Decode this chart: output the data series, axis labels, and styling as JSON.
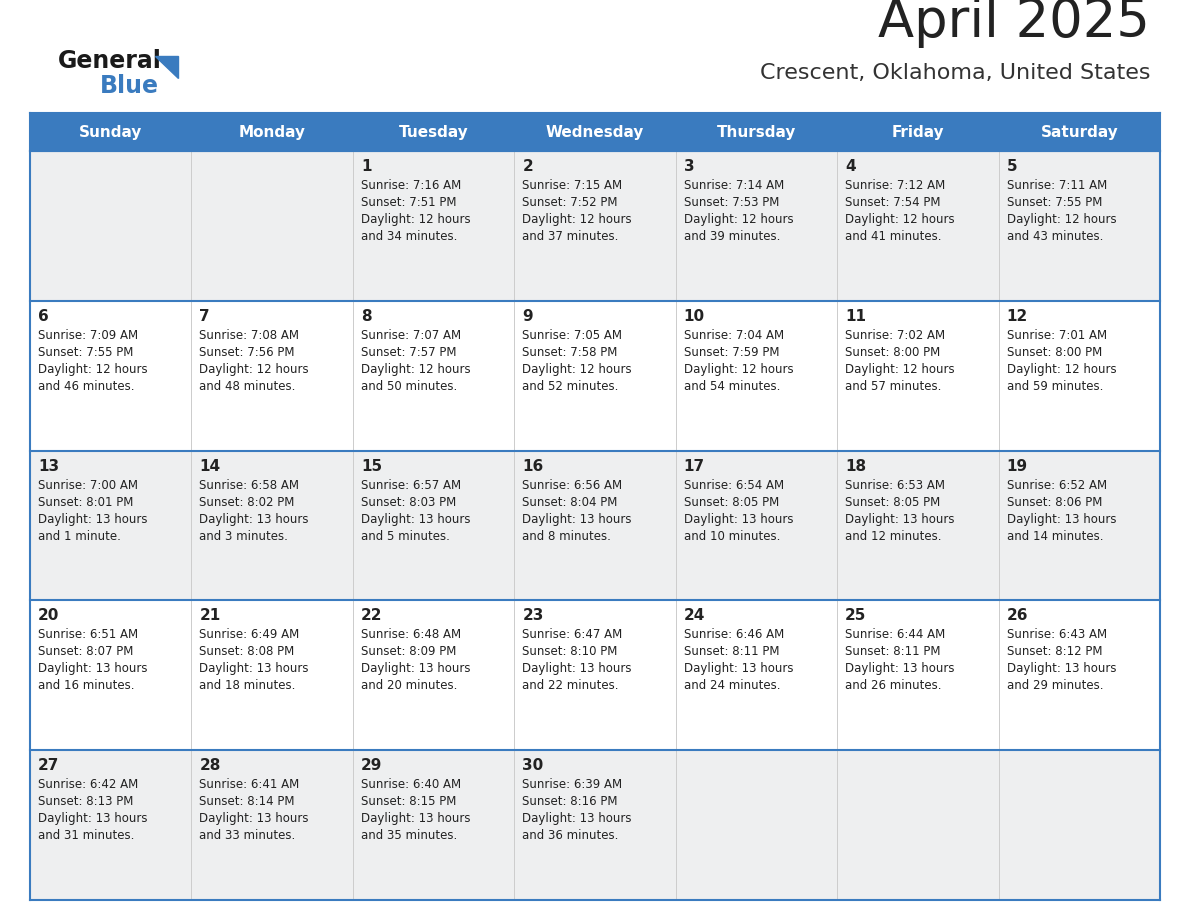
{
  "title": "April 2025",
  "subtitle": "Crescent, Oklahoma, United States",
  "days_of_week": [
    "Sunday",
    "Monday",
    "Tuesday",
    "Wednesday",
    "Thursday",
    "Friday",
    "Saturday"
  ],
  "header_bg": "#3a7bbf",
  "header_text": "#ffffff",
  "row_bg_odd": "#eeeff0",
  "row_bg_even": "#ffffff",
  "cell_text_color": "#222222",
  "grid_line_color": "#3a7bbf",
  "bg_color": "#ffffff",
  "title_color": "#222222",
  "subtitle_color": "#333333",
  "weeks": [
    [
      {
        "day": "",
        "info": ""
      },
      {
        "day": "",
        "info": ""
      },
      {
        "day": "1",
        "info": "Sunrise: 7:16 AM\nSunset: 7:51 PM\nDaylight: 12 hours\nand 34 minutes."
      },
      {
        "day": "2",
        "info": "Sunrise: 7:15 AM\nSunset: 7:52 PM\nDaylight: 12 hours\nand 37 minutes."
      },
      {
        "day": "3",
        "info": "Sunrise: 7:14 AM\nSunset: 7:53 PM\nDaylight: 12 hours\nand 39 minutes."
      },
      {
        "day": "4",
        "info": "Sunrise: 7:12 AM\nSunset: 7:54 PM\nDaylight: 12 hours\nand 41 minutes."
      },
      {
        "day": "5",
        "info": "Sunrise: 7:11 AM\nSunset: 7:55 PM\nDaylight: 12 hours\nand 43 minutes."
      }
    ],
    [
      {
        "day": "6",
        "info": "Sunrise: 7:09 AM\nSunset: 7:55 PM\nDaylight: 12 hours\nand 46 minutes."
      },
      {
        "day": "7",
        "info": "Sunrise: 7:08 AM\nSunset: 7:56 PM\nDaylight: 12 hours\nand 48 minutes."
      },
      {
        "day": "8",
        "info": "Sunrise: 7:07 AM\nSunset: 7:57 PM\nDaylight: 12 hours\nand 50 minutes."
      },
      {
        "day": "9",
        "info": "Sunrise: 7:05 AM\nSunset: 7:58 PM\nDaylight: 12 hours\nand 52 minutes."
      },
      {
        "day": "10",
        "info": "Sunrise: 7:04 AM\nSunset: 7:59 PM\nDaylight: 12 hours\nand 54 minutes."
      },
      {
        "day": "11",
        "info": "Sunrise: 7:02 AM\nSunset: 8:00 PM\nDaylight: 12 hours\nand 57 minutes."
      },
      {
        "day": "12",
        "info": "Sunrise: 7:01 AM\nSunset: 8:00 PM\nDaylight: 12 hours\nand 59 minutes."
      }
    ],
    [
      {
        "day": "13",
        "info": "Sunrise: 7:00 AM\nSunset: 8:01 PM\nDaylight: 13 hours\nand 1 minute."
      },
      {
        "day": "14",
        "info": "Sunrise: 6:58 AM\nSunset: 8:02 PM\nDaylight: 13 hours\nand 3 minutes."
      },
      {
        "day": "15",
        "info": "Sunrise: 6:57 AM\nSunset: 8:03 PM\nDaylight: 13 hours\nand 5 minutes."
      },
      {
        "day": "16",
        "info": "Sunrise: 6:56 AM\nSunset: 8:04 PM\nDaylight: 13 hours\nand 8 minutes."
      },
      {
        "day": "17",
        "info": "Sunrise: 6:54 AM\nSunset: 8:05 PM\nDaylight: 13 hours\nand 10 minutes."
      },
      {
        "day": "18",
        "info": "Sunrise: 6:53 AM\nSunset: 8:05 PM\nDaylight: 13 hours\nand 12 minutes."
      },
      {
        "day": "19",
        "info": "Sunrise: 6:52 AM\nSunset: 8:06 PM\nDaylight: 13 hours\nand 14 minutes."
      }
    ],
    [
      {
        "day": "20",
        "info": "Sunrise: 6:51 AM\nSunset: 8:07 PM\nDaylight: 13 hours\nand 16 minutes."
      },
      {
        "day": "21",
        "info": "Sunrise: 6:49 AM\nSunset: 8:08 PM\nDaylight: 13 hours\nand 18 minutes."
      },
      {
        "day": "22",
        "info": "Sunrise: 6:48 AM\nSunset: 8:09 PM\nDaylight: 13 hours\nand 20 minutes."
      },
      {
        "day": "23",
        "info": "Sunrise: 6:47 AM\nSunset: 8:10 PM\nDaylight: 13 hours\nand 22 minutes."
      },
      {
        "day": "24",
        "info": "Sunrise: 6:46 AM\nSunset: 8:11 PM\nDaylight: 13 hours\nand 24 minutes."
      },
      {
        "day": "25",
        "info": "Sunrise: 6:44 AM\nSunset: 8:11 PM\nDaylight: 13 hours\nand 26 minutes."
      },
      {
        "day": "26",
        "info": "Sunrise: 6:43 AM\nSunset: 8:12 PM\nDaylight: 13 hours\nand 29 minutes."
      }
    ],
    [
      {
        "day": "27",
        "info": "Sunrise: 6:42 AM\nSunset: 8:13 PM\nDaylight: 13 hours\nand 31 minutes."
      },
      {
        "day": "28",
        "info": "Sunrise: 6:41 AM\nSunset: 8:14 PM\nDaylight: 13 hours\nand 33 minutes."
      },
      {
        "day": "29",
        "info": "Sunrise: 6:40 AM\nSunset: 8:15 PM\nDaylight: 13 hours\nand 35 minutes."
      },
      {
        "day": "30",
        "info": "Sunrise: 6:39 AM\nSunset: 8:16 PM\nDaylight: 13 hours\nand 36 minutes."
      },
      {
        "day": "",
        "info": ""
      },
      {
        "day": "",
        "info": ""
      },
      {
        "day": "",
        "info": ""
      }
    ]
  ],
  "logo_general_color": "#1a1a1a",
  "logo_blue_color": "#3a7bbf"
}
